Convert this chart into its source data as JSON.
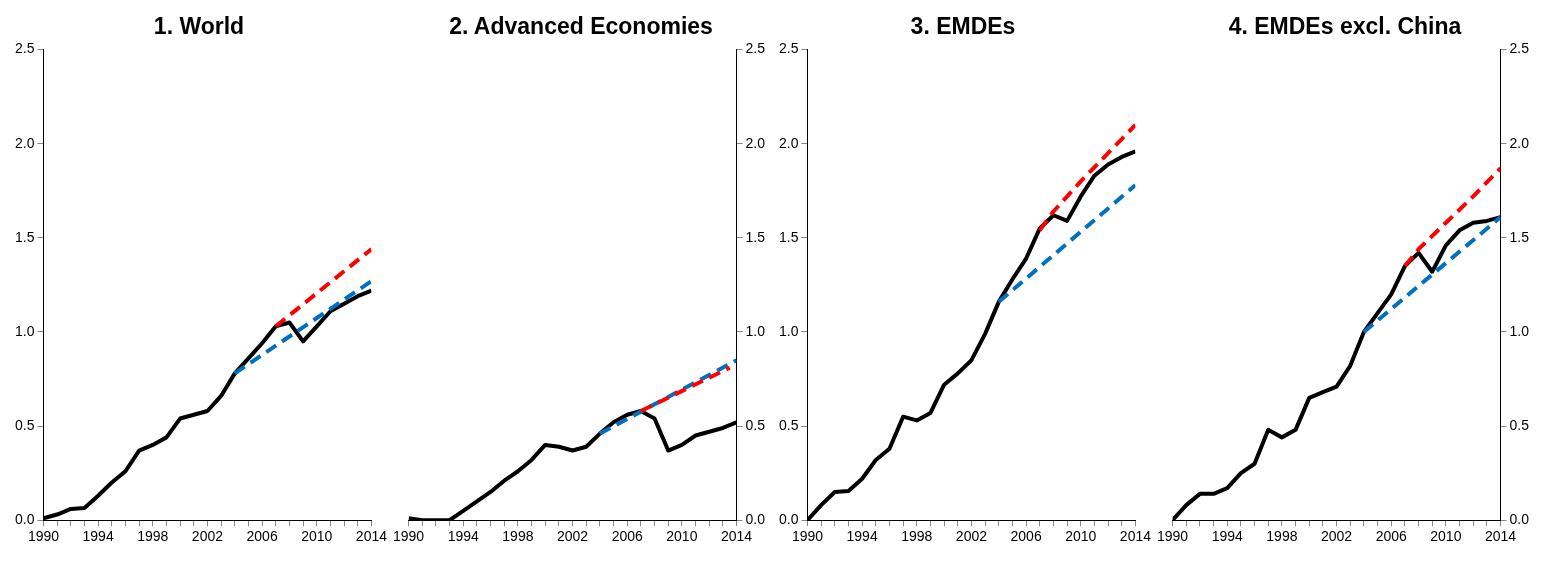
{
  "chart_data": [
    {
      "type": "line",
      "title": "1. World",
      "x": [
        1990,
        1991,
        1992,
        1993,
        1994,
        1995,
        1996,
        1997,
        1998,
        1999,
        2000,
        2001,
        2002,
        2003,
        2004,
        2005,
        2006,
        2007,
        2008,
        2009,
        2010,
        2011,
        2012,
        2013,
        2014
      ],
      "xlim": [
        1990,
        2014
      ],
      "xticks": [
        1990,
        {
          "value": 1991,
          "label": null
        },
        {
          "value": 1992,
          "label": null
        },
        {
          "value": 1993,
          "label": null
        },
        1994,
        {
          "value": 1995,
          "label": null
        },
        {
          "value": 1996,
          "label": null
        },
        {
          "value": 1997,
          "label": null
        },
        1998,
        {
          "value": 1999,
          "label": null
        },
        {
          "value": 2000,
          "label": null
        },
        {
          "value": 2001,
          "label": null
        },
        2002,
        {
          "value": 2003,
          "label": null
        },
        {
          "value": 2004,
          "label": null
        },
        {
          "value": 2005,
          "label": null
        },
        2006,
        {
          "value": 2007,
          "label": null
        },
        {
          "value": 2008,
          "label": null
        },
        {
          "value": 2009,
          "label": null
        },
        2010,
        {
          "value": 2011,
          "label": null
        },
        {
          "value": 2012,
          "label": null
        },
        {
          "value": 2013,
          "label": null
        },
        2014
      ],
      "ylim": [
        0,
        2.5
      ],
      "yticks": [
        {
          "value": 0,
          "label": "0.0"
        },
        0.5,
        {
          "value": 1,
          "label": "1.0"
        },
        1.5,
        {
          "value": 2,
          "label": "2.0"
        },
        2.5
      ],
      "grid": false,
      "legend": false,
      "series": [
        {
          "color": "#000000",
          "line_style": "solid",
          "values": [
            0.01,
            0.03,
            0.06,
            0.065,
            0.13,
            0.2,
            0.26,
            0.37,
            0.4,
            0.44,
            0.54,
            0.56,
            0.58,
            0.66,
            0.78,
            0.86,
            0.94,
            1.03,
            1.05,
            0.95,
            1.03,
            1.11,
            1.15,
            1.19,
            1.22
          ]
        },
        {
          "color": "#ff0000",
          "line_style": "dashed",
          "x": [
            2007,
            2014
          ],
          "values": [
            1.03,
            1.44
          ]
        },
        {
          "color": "#0070c0",
          "line_style": "dashed",
          "x": [
            2004,
            2014
          ],
          "values": [
            0.78,
            1.27
          ]
        }
      ]
    },
    {
      "type": "line",
      "title": "2. Advanced Economies",
      "x": [
        1990,
        1991,
        1992,
        1993,
        1994,
        1995,
        1996,
        1997,
        1998,
        1999,
        2000,
        2001,
        2002,
        2003,
        2004,
        2005,
        2006,
        2007,
        2008,
        2009,
        2010,
        2011,
        2012,
        2013,
        2014
      ],
      "xlim": [
        1990,
        2014
      ],
      "xticks": [
        1990,
        {
          "value": 1991,
          "label": null
        },
        {
          "value": 1992,
          "label": null
        },
        {
          "value": 1993,
          "label": null
        },
        1994,
        {
          "value": 1995,
          "label": null
        },
        {
          "value": 1996,
          "label": null
        },
        {
          "value": 1997,
          "label": null
        },
        1998,
        {
          "value": 1999,
          "label": null
        },
        {
          "value": 2000,
          "label": null
        },
        {
          "value": 2001,
          "label": null
        },
        2002,
        {
          "value": 2003,
          "label": null
        },
        {
          "value": 2004,
          "label": null
        },
        {
          "value": 2005,
          "label": null
        },
        2006,
        {
          "value": 2007,
          "label": null
        },
        {
          "value": 2008,
          "label": null
        },
        {
          "value": 2009,
          "label": null
        },
        2010,
        {
          "value": 2011,
          "label": null
        },
        {
          "value": 2012,
          "label": null
        },
        {
          "value": 2013,
          "label": null
        },
        2014
      ],
      "y2lim": [
        0,
        2.5
      ],
      "y2ticks": [
        {
          "value": 0,
          "label": "0.0"
        },
        0.5,
        {
          "value": 1,
          "label": "1.0"
        },
        1.5,
        {
          "value": 2,
          "label": "2.0"
        },
        2.5
      ],
      "grid": false,
      "legend": false,
      "series": [
        {
          "color": "#000000",
          "line_style": "solid",
          "axis": "y2",
          "values": [
            0.01,
            0,
            0,
            0,
            0.05,
            0.1,
            0.15,
            0.21,
            0.26,
            0.32,
            0.4,
            0.39,
            0.37,
            0.39,
            0.46,
            0.52,
            0.56,
            0.58,
            0.54,
            0.37,
            0.4,
            0.45,
            0.47,
            0.49,
            0.52
          ]
        },
        {
          "color": "#ff0000",
          "line_style": "dashed",
          "axis": "y2",
          "x": [
            2007,
            2013.5
          ],
          "values": [
            0.58,
            0.81
          ]
        },
        {
          "color": "#0070c0",
          "line_style": "dashed",
          "axis": "y2",
          "x": [
            2004,
            2014
          ],
          "values": [
            0.46,
            0.85
          ]
        }
      ]
    },
    {
      "type": "line",
      "title": "3. EMDEs",
      "x": [
        1990,
        1991,
        1992,
        1993,
        1994,
        1995,
        1996,
        1997,
        1998,
        1999,
        2000,
        2001,
        2002,
        2003,
        2004,
        2005,
        2006,
        2007,
        2008,
        2009,
        2010,
        2011,
        2012,
        2013,
        2014
      ],
      "xlim": [
        1990,
        2014
      ],
      "xticks": [
        1990,
        {
          "value": 1991,
          "label": null
        },
        {
          "value": 1992,
          "label": null
        },
        {
          "value": 1993,
          "label": null
        },
        1994,
        {
          "value": 1995,
          "label": null
        },
        {
          "value": 1996,
          "label": null
        },
        {
          "value": 1997,
          "label": null
        },
        1998,
        {
          "value": 1999,
          "label": null
        },
        {
          "value": 2000,
          "label": null
        },
        {
          "value": 2001,
          "label": null
        },
        2002,
        {
          "value": 2003,
          "label": null
        },
        {
          "value": 2004,
          "label": null
        },
        {
          "value": 2005,
          "label": null
        },
        2006,
        {
          "value": 2007,
          "label": null
        },
        {
          "value": 2008,
          "label": null
        },
        {
          "value": 2009,
          "label": null
        },
        2010,
        {
          "value": 2011,
          "label": null
        },
        {
          "value": 2012,
          "label": null
        },
        {
          "value": 2013,
          "label": null
        },
        2014
      ],
      "ylim": [
        0,
        2.5
      ],
      "yticks": [
        {
          "value": 0,
          "label": "0.0"
        },
        0.5,
        {
          "value": 1,
          "label": "1.0"
        },
        1.5,
        {
          "value": 2,
          "label": "2.0"
        },
        2.5
      ],
      "grid": false,
      "legend": false,
      "series": [
        {
          "color": "#000000",
          "line_style": "solid",
          "values": [
            0,
            0.08,
            0.15,
            0.155,
            0.22,
            0.32,
            0.38,
            0.55,
            0.53,
            0.57,
            0.72,
            0.78,
            0.85,
            0.99,
            1.16,
            1.28,
            1.39,
            1.55,
            1.62,
            1.59,
            1.72,
            1.83,
            1.89,
            1.93,
            1.96
          ]
        },
        {
          "color": "#ff0000",
          "line_style": "dashed",
          "x": [
            2007,
            2008,
            2010,
            2012,
            2014
          ],
          "values": [
            1.54,
            1.64,
            1.8,
            1.95,
            2.1
          ]
        },
        {
          "color": "#0070c0",
          "line_style": "dashed",
          "x": [
            2004,
            2014
          ],
          "values": [
            1.16,
            1.78
          ]
        }
      ]
    },
    {
      "type": "line",
      "title": "4. EMDEs excl. China",
      "x": [
        1990,
        1991,
        1992,
        1993,
        1994,
        1995,
        1996,
        1997,
        1998,
        1999,
        2000,
        2001,
        2002,
        2003,
        2004,
        2005,
        2006,
        2007,
        2008,
        2009,
        2010,
        2011,
        2012,
        2013,
        2014
      ],
      "xlim": [
        1990,
        2014
      ],
      "xticks": [
        1990,
        {
          "value": 1991,
          "label": null
        },
        {
          "value": 1992,
          "label": null
        },
        {
          "value": 1993,
          "label": null
        },
        1994,
        {
          "value": 1995,
          "label": null
        },
        {
          "value": 1996,
          "label": null
        },
        {
          "value": 1997,
          "label": null
        },
        1998,
        {
          "value": 1999,
          "label": null
        },
        {
          "value": 2000,
          "label": null
        },
        {
          "value": 2001,
          "label": null
        },
        2002,
        {
          "value": 2003,
          "label": null
        },
        {
          "value": 2004,
          "label": null
        },
        {
          "value": 2005,
          "label": null
        },
        2006,
        {
          "value": 2007,
          "label": null
        },
        {
          "value": 2008,
          "label": null
        },
        {
          "value": 2009,
          "label": null
        },
        2010,
        {
          "value": 2011,
          "label": null
        },
        {
          "value": 2012,
          "label": null
        },
        {
          "value": 2013,
          "label": null
        },
        2014
      ],
      "y2lim": [
        0,
        2.5
      ],
      "y2ticks": [
        {
          "value": 0,
          "label": "0.0"
        },
        0.5,
        {
          "value": 1,
          "label": "1.0"
        },
        1.5,
        {
          "value": 2,
          "label": "2.0"
        },
        2.5
      ],
      "grid": false,
      "legend": false,
      "series": [
        {
          "color": "#000000",
          "line_style": "solid",
          "axis": "y2",
          "values": [
            0,
            0.08,
            0.14,
            0.14,
            0.17,
            0.25,
            0.3,
            0.48,
            0.44,
            0.48,
            0.65,
            0.68,
            0.71,
            0.82,
            1,
            1.1,
            1.2,
            1.35,
            1.42,
            1.32,
            1.46,
            1.54,
            1.58,
            1.59,
            1.61
          ]
        },
        {
          "color": "#ff0000",
          "line_style": "dashed",
          "axis": "y2",
          "x": [
            2007,
            2008,
            2010,
            2012,
            2014
          ],
          "values": [
            1.35,
            1.44,
            1.58,
            1.72,
            1.87
          ]
        },
        {
          "color": "#0070c0",
          "line_style": "dashed",
          "axis": "y2",
          "x": [
            2004,
            2014
          ],
          "values": [
            1,
            1.61
          ]
        }
      ]
    }
  ]
}
